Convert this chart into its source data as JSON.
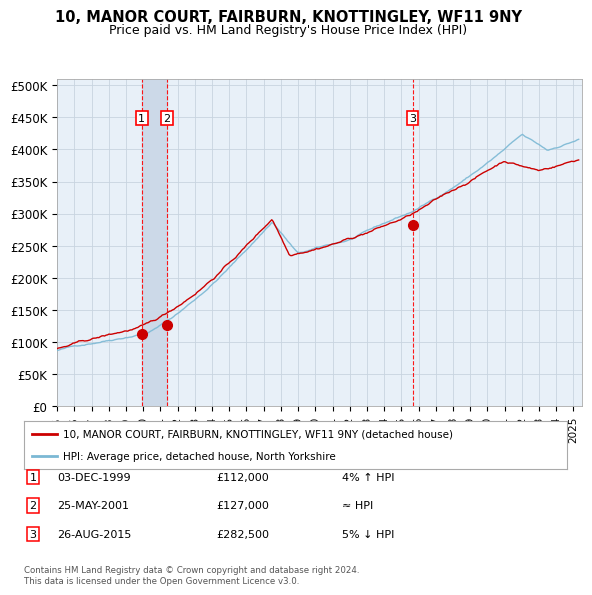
{
  "title": "10, MANOR COURT, FAIRBURN, KNOTTINGLEY, WF11 9NY",
  "subtitle": "Price paid vs. HM Land Registry's House Price Index (HPI)",
  "yticks": [
    0,
    50000,
    100000,
    150000,
    200000,
    250000,
    300000,
    350000,
    400000,
    450000,
    500000
  ],
  "ytick_labels": [
    "£0",
    "£50K",
    "£100K",
    "£150K",
    "£200K",
    "£250K",
    "£300K",
    "£350K",
    "£400K",
    "£450K",
    "£500K"
  ],
  "xlim_start": 1995.0,
  "xlim_end": 2025.5,
  "ylim_min": 0,
  "ylim_max": 510000,
  "sale_dates": [
    1999.92,
    2001.39,
    2015.65
  ],
  "sale_prices": [
    112000,
    127000,
    282500
  ],
  "sale_labels": [
    "1",
    "2",
    "3"
  ],
  "hpi_color": "#7bb8d4",
  "sale_color": "#cc0000",
  "legend_line1": "10, MANOR COURT, FAIRBURN, KNOTTINGLEY, WF11 9NY (detached house)",
  "legend_line2": "HPI: Average price, detached house, North Yorkshire",
  "table_entries": [
    {
      "num": "1",
      "date": "03-DEC-1999",
      "price": "£112,000",
      "relation": "4% ↑ HPI"
    },
    {
      "num": "2",
      "date": "25-MAY-2001",
      "price": "£127,000",
      "relation": "≈ HPI"
    },
    {
      "num": "3",
      "date": "26-AUG-2015",
      "price": "£282,500",
      "relation": "5% ↓ HPI"
    }
  ],
  "footnote": "Contains HM Land Registry data © Crown copyright and database right 2024.\nThis data is licensed under the Open Government Licence v3.0.",
  "bg_color": "#ffffff",
  "plot_bg_color": "#e8f0f8",
  "grid_color": "#c8d4e0",
  "shaded_region_color": "#ccd9e8"
}
